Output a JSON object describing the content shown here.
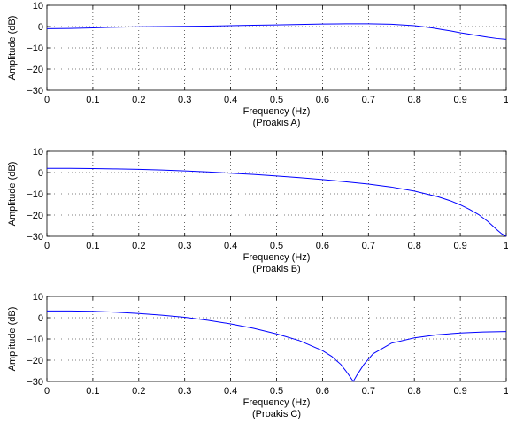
{
  "chart_data": [
    {
      "type": "line",
      "xlabel": "Frequency (Hz)",
      "subtitle": "(Proakis A)",
      "ylabel": "Amplitude (dB)",
      "xlim": [
        0,
        1
      ],
      "ylim": [
        -30,
        10
      ],
      "xticks": [
        "0",
        "0.1",
        "0.2",
        "0.3",
        "0.4",
        "0.5",
        "0.6",
        "0.7",
        "0.8",
        "0.9",
        "1"
      ],
      "yticks": [
        "10",
        "0",
        "−10",
        "−20",
        "−30"
      ],
      "grid": true,
      "series": [
        {
          "color": "#0000ff",
          "x": [
            0,
            0.05,
            0.1,
            0.15,
            0.2,
            0.25,
            0.3,
            0.35,
            0.4,
            0.45,
            0.5,
            0.55,
            0.6,
            0.65,
            0.7,
            0.75,
            0.8,
            0.82,
            0.84,
            0.86,
            0.88,
            0.9,
            0.92,
            0.94,
            0.96,
            0.98,
            1.0
          ],
          "y": [
            -1.0,
            -0.9,
            -0.6,
            -0.3,
            -0.1,
            0.0,
            0.1,
            0.2,
            0.4,
            0.6,
            0.8,
            1.0,
            1.2,
            1.3,
            1.3,
            1.1,
            0.4,
            -0.1,
            -0.7,
            -1.4,
            -2.1,
            -2.9,
            -3.6,
            -4.3,
            -5.0,
            -5.6,
            -6.0
          ]
        }
      ]
    },
    {
      "type": "line",
      "xlabel": "Frequency (Hz)",
      "subtitle": "(Proakis B)",
      "ylabel": "Amplitude (dB)",
      "xlim": [
        0,
        1
      ],
      "ylim": [
        -30,
        10
      ],
      "xticks": [
        "0",
        "0.1",
        "0.2",
        "0.3",
        "0.4",
        "0.5",
        "0.6",
        "0.7",
        "0.8",
        "0.9",
        "1"
      ],
      "yticks": [
        "10",
        "0",
        "−10",
        "−20",
        "−30"
      ],
      "grid": true,
      "series": [
        {
          "color": "#0000ff",
          "x": [
            0,
            0.05,
            0.1,
            0.15,
            0.2,
            0.25,
            0.3,
            0.35,
            0.4,
            0.45,
            0.5,
            0.55,
            0.6,
            0.65,
            0.7,
            0.75,
            0.8,
            0.85,
            0.88,
            0.9,
            0.92,
            0.94,
            0.96,
            0.97,
            0.98,
            0.99,
            1.0
          ],
          "y": [
            2.0,
            2.0,
            1.9,
            1.7,
            1.5,
            1.2,
            0.8,
            0.3,
            -0.3,
            -0.9,
            -1.6,
            -2.4,
            -3.3,
            -4.3,
            -5.4,
            -6.8,
            -8.7,
            -11.3,
            -13.4,
            -15.2,
            -17.3,
            -19.8,
            -23.0,
            -25.0,
            -27.0,
            -28.8,
            -30.0
          ]
        }
      ]
    },
    {
      "type": "line",
      "xlabel": "Frequency (Hz)",
      "subtitle": "(Proakis C)",
      "ylabel": "Amplitude (dB)",
      "xlim": [
        0,
        1
      ],
      "ylim": [
        -30,
        10
      ],
      "xticks": [
        "0",
        "0.1",
        "0.2",
        "0.3",
        "0.4",
        "0.5",
        "0.6",
        "0.7",
        "0.8",
        "0.9",
        "1"
      ],
      "yticks": [
        "10",
        "0",
        "−10",
        "−20",
        "−30"
      ],
      "grid": true,
      "series": [
        {
          "color": "#0000ff",
          "x": [
            0,
            0.05,
            0.1,
            0.15,
            0.2,
            0.25,
            0.3,
            0.35,
            0.4,
            0.45,
            0.5,
            0.55,
            0.6,
            0.62,
            0.64,
            0.65,
            0.66,
            0.667,
            0.675,
            0.69,
            0.71,
            0.75,
            0.8,
            0.85,
            0.9,
            0.95,
            1.0
          ],
          "y": [
            3.2,
            3.2,
            3.0,
            2.6,
            2.0,
            1.2,
            0.2,
            -1.2,
            -2.9,
            -5.0,
            -7.6,
            -10.8,
            -15.5,
            -18.2,
            -22.0,
            -24.8,
            -27.8,
            -30.0,
            -27.0,
            -22.0,
            -17.0,
            -12.0,
            -9.5,
            -8.0,
            -7.2,
            -6.7,
            -6.5
          ]
        }
      ]
    }
  ]
}
